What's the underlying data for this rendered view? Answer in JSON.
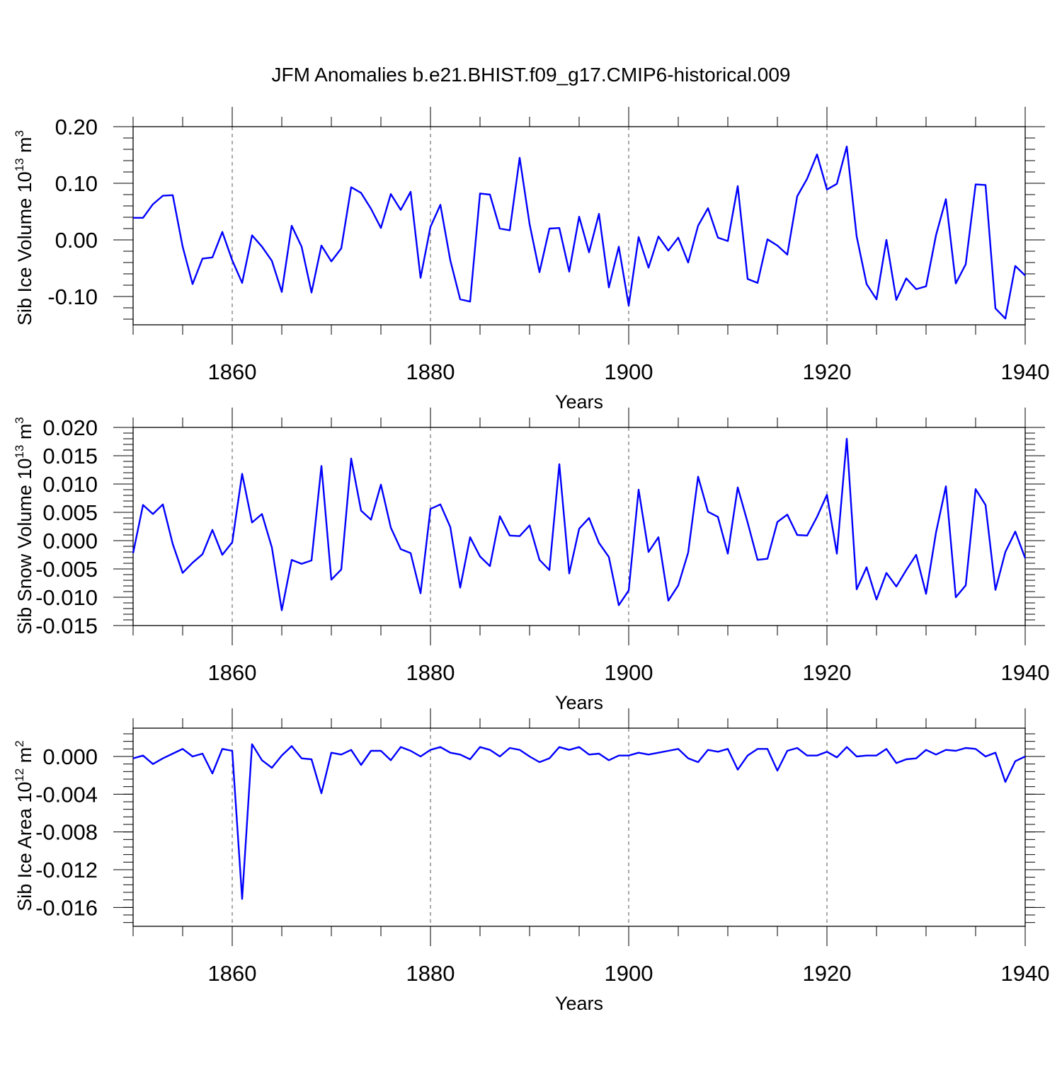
{
  "title": "JFM Anomalies b.e21.BHIST.f09_g17.CMIP6-historical.009",
  "colors": {
    "line": "#0000ff",
    "axis": "#000000",
    "grid": "#555555"
  },
  "chart_data": [
    {
      "type": "line",
      "ylabel": {
        "main": "Sib Ice Volume 10",
        "sup1": "13",
        "mid": " m",
        "sup2": "3"
      },
      "xlabel": "Years",
      "xlim": [
        1850,
        1940
      ],
      "ylim": [
        -0.15,
        0.2
      ],
      "xticks": [
        "1860",
        "1880",
        "1900",
        "1920",
        "1940"
      ],
      "yticks": [
        "0.20",
        "0.10",
        "0.00",
        "-0.10"
      ],
      "ytick_values": [
        0.2,
        0.1,
        0.0,
        -0.1
      ],
      "x_start": 1850,
      "values": [
        0.039,
        0.039,
        0.063,
        0.078,
        0.079,
        -0.012,
        -0.078,
        -0.033,
        -0.031,
        0.014,
        -0.036,
        -0.076,
        0.008,
        -0.012,
        -0.037,
        -0.092,
        0.025,
        -0.012,
        -0.093,
        -0.01,
        -0.038,
        -0.015,
        0.093,
        0.083,
        0.055,
        0.021,
        0.081,
        0.053,
        0.085,
        -0.067,
        0.023,
        0.062,
        -0.036,
        -0.105,
        -0.109,
        0.082,
        0.08,
        0.02,
        0.017,
        0.145,
        0.028,
        -0.057,
        0.02,
        0.021,
        -0.056,
        0.041,
        -0.022,
        0.046,
        -0.084,
        -0.012,
        -0.116,
        0.005,
        -0.049,
        0.006,
        -0.019,
        0.004,
        -0.04,
        0.025,
        0.056,
        0.004,
        -0.002,
        0.095,
        -0.069,
        -0.076,
        0.001,
        -0.01,
        -0.026,
        0.077,
        0.108,
        0.151,
        0.089,
        0.099,
        0.165,
        0.006,
        -0.078,
        -0.105,
        0.0,
        -0.106,
        -0.068,
        -0.087,
        -0.082,
        0.008,
        0.072,
        -0.077,
        -0.043,
        0.098,
        0.097,
        -0.121,
        -0.139,
        -0.046,
        -0.063
      ],
      "grid": "vertical dashed"
    },
    {
      "type": "line",
      "ylabel": {
        "main": "Sib Snow Volume 10",
        "sup1": "13",
        "mid": " m",
        "sup2": "3"
      },
      "xlabel": "Years",
      "xlim": [
        1850,
        1940
      ],
      "ylim": [
        -0.015,
        0.02
      ],
      "xticks": [
        "1860",
        "1880",
        "1900",
        "1920",
        "1940"
      ],
      "yticks": [
        "0.020",
        "0.015",
        "0.010",
        "0.005",
        "0.000",
        "-0.005",
        "-0.010",
        "-0.015"
      ],
      "ytick_values": [
        0.02,
        0.015,
        0.01,
        0.005,
        0.0,
        -0.005,
        -0.01,
        -0.015
      ],
      "x_start": 1850,
      "values": [
        -0.0022,
        0.0063,
        0.0047,
        0.0064,
        -0.0006,
        -0.0057,
        -0.0039,
        -0.0024,
        0.0019,
        -0.0025,
        -0.0003,
        0.0118,
        0.0032,
        0.0047,
        -0.0012,
        -0.0123,
        -0.0034,
        -0.0041,
        -0.0035,
        0.0132,
        -0.0069,
        -0.0051,
        0.0145,
        0.0053,
        0.0037,
        0.0099,
        0.0023,
        -0.0015,
        -0.0022,
        -0.0093,
        0.0056,
        0.0064,
        0.0024,
        -0.0083,
        0.0006,
        -0.0028,
        -0.0045,
        0.0043,
        0.0009,
        0.0008,
        0.0027,
        -0.0034,
        -0.0052,
        0.0135,
        -0.0058,
        0.0021,
        0.004,
        -0.0004,
        -0.0029,
        -0.0114,
        -0.0088,
        0.009,
        -0.002,
        0.0006,
        -0.0106,
        -0.0079,
        -0.0021,
        0.0113,
        0.0051,
        0.0042,
        -0.0023,
        0.0094,
        0.0032,
        -0.0034,
        -0.0032,
        0.0033,
        0.0046,
        0.001,
        0.0009,
        0.0042,
        0.0081,
        -0.0023,
        0.018,
        -0.0086,
        -0.0047,
        -0.0104,
        -0.0057,
        -0.0081,
        -0.0052,
        -0.0025,
        -0.0094,
        0.0014,
        0.0096,
        -0.01,
        -0.0079,
        0.0091,
        0.0063,
        -0.0087,
        -0.002,
        0.0016,
        -0.0031
      ],
      "grid": "vertical dashed"
    },
    {
      "type": "line",
      "ylabel": {
        "main": "Sib Ice Area 10",
        "sup1": "12",
        "mid": " m",
        "sup2": "2"
      },
      "xlabel": "Years",
      "xlim": [
        1850,
        1940
      ],
      "ylim": [
        -0.018,
        0.003
      ],
      "xticks": [
        "1860",
        "1880",
        "1900",
        "1920",
        "1940"
      ],
      "yticks": [
        "0.000",
        "-0.004",
        "-0.008",
        "-0.012",
        "-0.016"
      ],
      "ytick_values": [
        0.0,
        -0.004,
        -0.008,
        -0.012,
        -0.016
      ],
      "x_start": 1850,
      "values": [
        -0.0002,
        0.0001,
        -0.0008,
        -0.0002,
        0.0003,
        0.0008,
        0.0,
        0.0003,
        -0.0018,
        0.0008,
        0.0006,
        -0.0151,
        0.0013,
        -0.0004,
        -0.0012,
        0.0001,
        0.0011,
        -0.0002,
        -0.0003,
        -0.0039,
        0.0004,
        0.0002,
        0.0007,
        -0.0009,
        0.0006,
        0.0006,
        -0.0004,
        0.001,
        0.0006,
        0.0,
        0.0007,
        0.001,
        0.0004,
        0.0002,
        -0.0003,
        0.001,
        0.0007,
        0.0,
        0.0009,
        0.0007,
        0.0,
        -0.0006,
        -0.0002,
        0.001,
        0.0007,
        0.001,
        0.0002,
        0.0003,
        -0.0004,
        0.0001,
        0.0001,
        0.0004,
        0.0002,
        0.0004,
        0.0006,
        0.0008,
        -0.0002,
        -0.0006,
        0.0007,
        0.0005,
        0.0008,
        -0.0014,
        0.0001,
        0.0008,
        0.0008,
        -0.0015,
        0.0006,
        0.0009,
        0.0001,
        0.0001,
        0.0005,
        -0.0001,
        0.001,
        0.0,
        0.0001,
        0.0001,
        0.0008,
        -0.0007,
        -0.0003,
        -0.0002,
        0.0007,
        0.0002,
        0.0007,
        0.0006,
        0.0009,
        0.0008,
        0.0,
        0.0004,
        -0.0027,
        -0.0005,
        0.0
      ],
      "grid": "vertical dashed"
    }
  ]
}
